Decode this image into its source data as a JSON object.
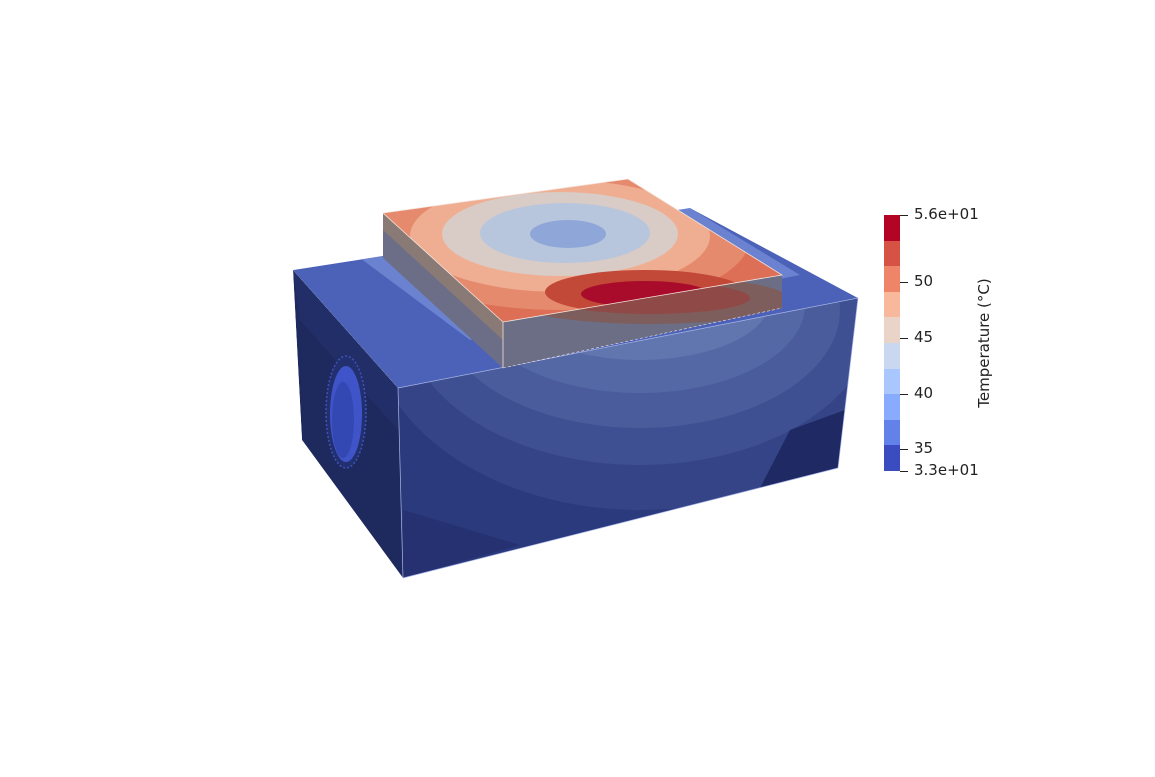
{
  "view": {
    "background": "#ffffff",
    "visualization": "3D temperature contour rendering of a block with a raised plate on top"
  },
  "colorbar": {
    "title": "Temperature (°C)",
    "range": [
      33,
      56
    ],
    "max_label": "5.6e+01",
    "min_label": "3.3e+01",
    "tick_labels": [
      "50",
      "45",
      "40",
      "35"
    ],
    "colors": [
      "#b40426",
      "#d65244",
      "#ee8468",
      "#f7b89c",
      "#ead4c8",
      "#c9d7f0",
      "#aac7fd",
      "#88abfd",
      "#6282ea",
      "#3b4cc0"
    ]
  }
}
